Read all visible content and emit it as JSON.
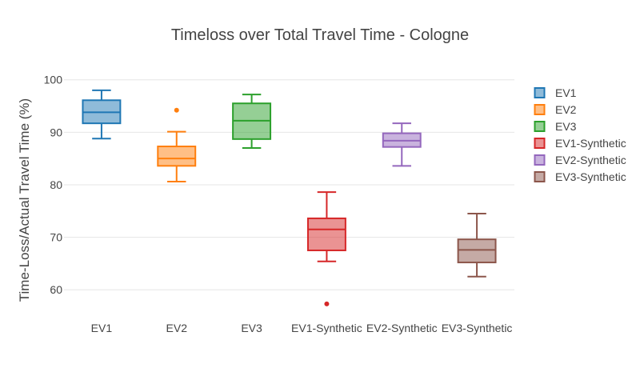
{
  "chart_data": {
    "type": "box",
    "title": "Timeloss over Total Travel Time - Cologne",
    "xlabel": "",
    "ylabel": "Time-Loss/Actual Travel Time (%)",
    "ylim": [
      55,
      103
    ],
    "yticks": [
      60,
      70,
      80,
      90,
      100
    ],
    "grid": true,
    "legend_position": "right",
    "categories": [
      "EV1",
      "EV2",
      "EV3",
      "EV1-Synthetic",
      "EV2-Synthetic",
      "EV3-Synthetic"
    ],
    "series": [
      {
        "name": "EV1",
        "color": "#1f77b4",
        "min": 88.8,
        "q1": 91.7,
        "median": 93.8,
        "q3": 96.1,
        "max": 98.0,
        "outliers": []
      },
      {
        "name": "EV2",
        "color": "#ff7f0e",
        "min": 80.6,
        "q1": 83.6,
        "median": 85.0,
        "q3": 87.3,
        "max": 90.1,
        "outliers": [
          94.2
        ]
      },
      {
        "name": "EV3",
        "color": "#2ca02c",
        "min": 87.0,
        "q1": 88.7,
        "median": 92.2,
        "q3": 95.5,
        "max": 97.2,
        "outliers": []
      },
      {
        "name": "EV1-Synthetic",
        "color": "#d62728",
        "min": 65.4,
        "q1": 67.5,
        "median": 71.5,
        "q3": 73.6,
        "max": 78.6,
        "outliers": [
          57.3
        ]
      },
      {
        "name": "EV2-Synthetic",
        "color": "#9467bd",
        "min": 83.6,
        "q1": 87.2,
        "median": 88.4,
        "q3": 89.8,
        "max": 91.7,
        "outliers": []
      },
      {
        "name": "EV3-Synthetic",
        "color": "#8c564b",
        "min": 62.5,
        "q1": 65.2,
        "median": 67.6,
        "q3": 69.6,
        "max": 74.5,
        "outliers": []
      }
    ]
  }
}
